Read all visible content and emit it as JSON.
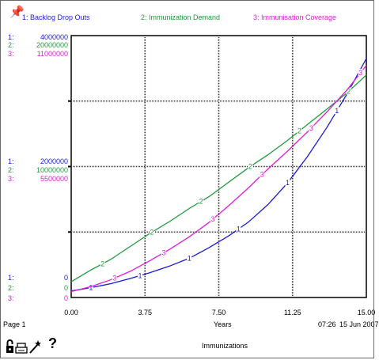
{
  "legend": [
    {
      "label": "1: Backlog Drop Outs",
      "color": "#1a1ad6"
    },
    {
      "label": "2: Immunization Demand",
      "color": "#1e9a3a"
    },
    {
      "label": "3: Immunisation Coverage",
      "color": "#e01ad6"
    }
  ],
  "y_axis_blocks": [
    {
      "rows": [
        {
          "prefix": "1:",
          "value": "4000000"
        },
        {
          "prefix": "2:",
          "value": "20000000"
        },
        {
          "prefix": "3:",
          "value": "11000000"
        }
      ]
    },
    {
      "rows": [
        {
          "prefix": "1:",
          "value": "2000000"
        },
        {
          "prefix": "2:",
          "value": "10000000"
        },
        {
          "prefix": "3:",
          "value": "5500000"
        }
      ]
    },
    {
      "rows": [
        {
          "prefix": "1:",
          "value": "0"
        },
        {
          "prefix": "2:",
          "value": "0"
        },
        {
          "prefix": "3:",
          "value": "0"
        }
      ]
    }
  ],
  "footer": {
    "page": "Page 1",
    "xlabel": "Years",
    "time": "07:26",
    "date": "15 Jun 2007",
    "title": "Immunizations",
    "help": "?"
  },
  "icons": [
    "pin-icon",
    "lock-icon",
    "print-icon",
    "wand-icon",
    "help-icon"
  ],
  "colors": {
    "grid": "#3a3a3a",
    "axis": "#000000"
  },
  "chart_data": {
    "type": "line",
    "title": "Immunizations",
    "xlabel": "Years",
    "xlim": [
      0,
      15
    ],
    "x_ticks": [
      "0.00",
      "3.75",
      "7.50",
      "11.25",
      "15.00"
    ],
    "grid": true,
    "legend_position": "top",
    "series": [
      {
        "name": "1: Backlog Drop Outs",
        "number": "1",
        "color": "#1a1ad6",
        "ylim": [
          0,
          4000000
        ],
        "x": [
          0,
          1,
          2,
          3,
          4,
          5,
          6,
          7,
          8,
          9,
          10,
          11,
          12,
          13,
          14,
          15
        ],
        "y": [
          100000,
          150000,
          210000,
          290000,
          380000,
          480000,
          600000,
          760000,
          940000,
          1150000,
          1420000,
          1750000,
          2150000,
          2600000,
          3100000,
          3650000
        ]
      },
      {
        "name": "2: Immunization Demand",
        "number": "2",
        "color": "#1e9a3a",
        "ylim": [
          0,
          20000000
        ],
        "x": [
          0,
          1,
          2,
          3,
          4,
          5,
          6,
          7,
          8,
          9,
          10,
          11,
          12,
          13,
          14,
          15
        ],
        "y": [
          1200000,
          2100000,
          2900000,
          3900000,
          4900000,
          5800000,
          6800000,
          7700000,
          8800000,
          9900000,
          10900000,
          12000000,
          13200000,
          14400000,
          15600000,
          17000000
        ]
      },
      {
        "name": "3: Immunisation Coverage",
        "number": "3",
        "color": "#e01ad6",
        "ylim": [
          0,
          11000000
        ],
        "x": [
          0,
          1,
          2,
          3,
          4,
          5,
          6,
          7,
          8,
          9,
          10,
          11,
          12,
          13,
          14,
          15
        ],
        "y": [
          250000,
          460000,
          740000,
          1100000,
          1550000,
          2020000,
          2550000,
          3150000,
          3850000,
          4600000,
          5400000,
          6150000,
          6950000,
          7800000,
          8700000,
          9750000
        ]
      }
    ]
  }
}
